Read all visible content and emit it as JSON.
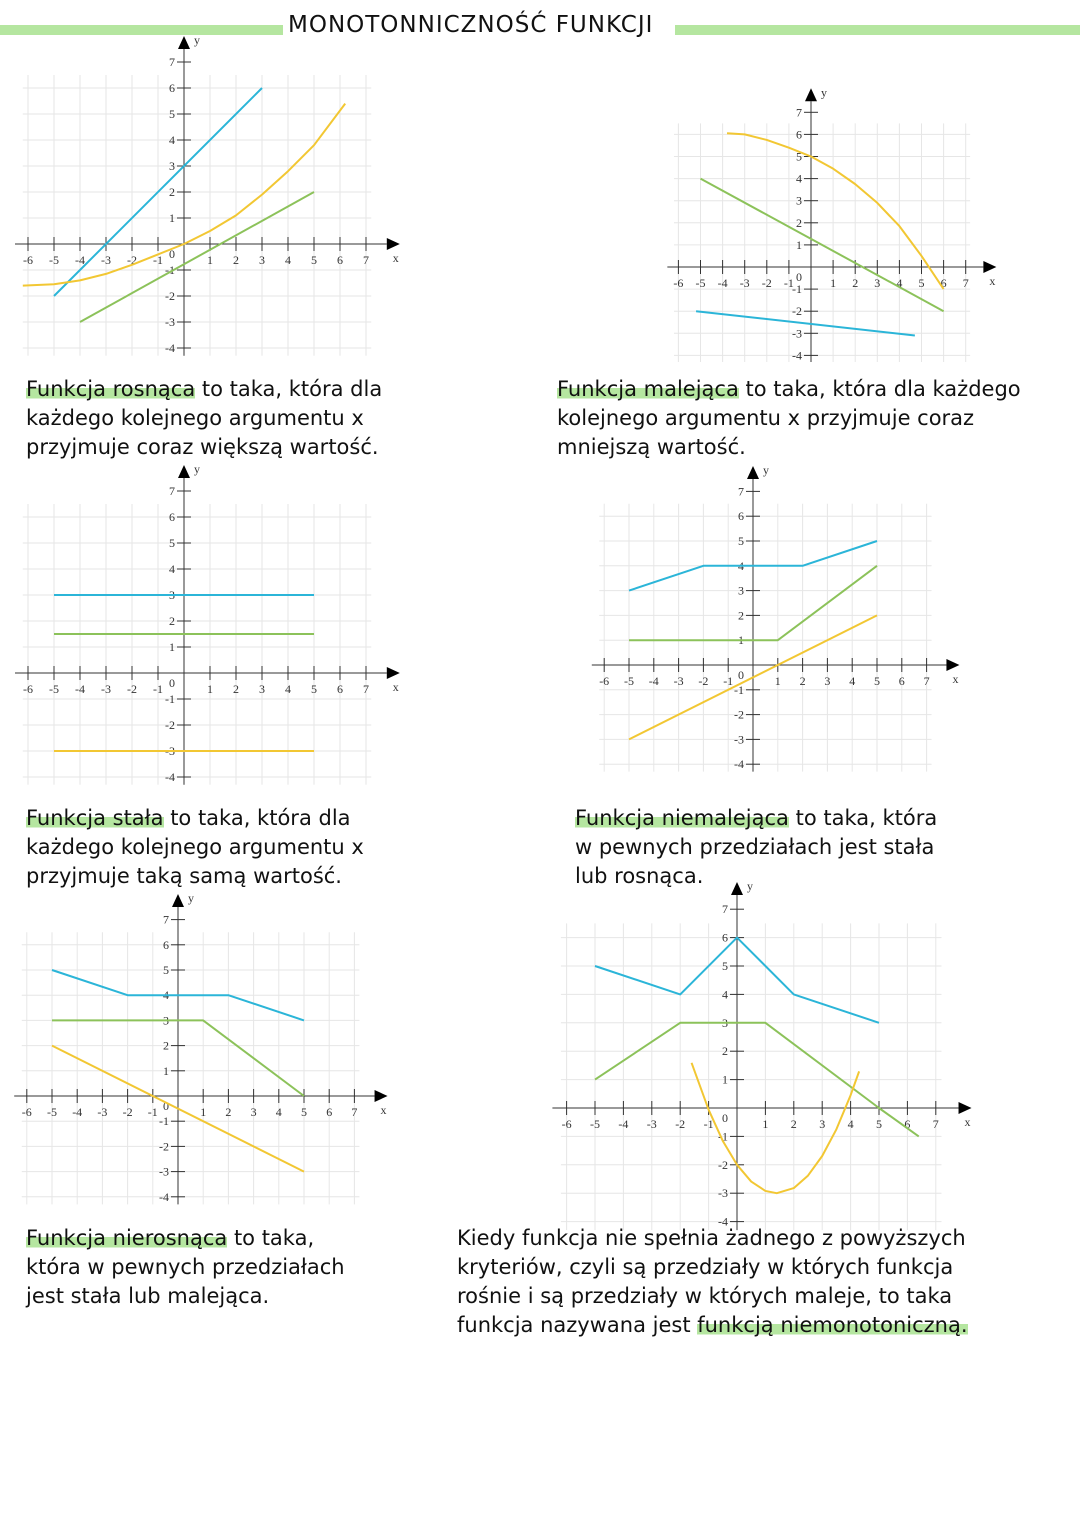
{
  "header": {
    "title": "MONOTONNICZNOŚĆ FUNKCJI",
    "accent_color": "#b5e6a0"
  },
  "blocks": [
    {
      "term": "Funkcja rosnąca",
      "lines": [
        " to taka, która dla",
        "każdego kolejnego argumentu x",
        "przyjmuje coraz większą wartość."
      ]
    },
    {
      "term": "Funkcja malejąca",
      "lines": [
        " to taka, która dla każdego",
        "kolejnego argumentu x przyjmuje coraz",
        "mniejszą wartość."
      ]
    },
    {
      "term": "Funkcja stała",
      "lines": [
        " to taka, która dla",
        "każdego kolejnego argumentu x",
        "przyjmuje taką samą wartość."
      ]
    },
    {
      "term": "Funkcja niemalejąca",
      "lines": [
        " to taka, która",
        "w pewnych przedziałach jest stała",
        "lub rosnąca."
      ]
    },
    {
      "term": "Funkcja nierosnąca",
      "lines": [
        " to taka,",
        "która w pewnych przedziałach",
        "jest stała lub malejąca."
      ]
    },
    {
      "lines": [
        "Kiedy funkcja nie spełnia żadnego z powyższych",
        "kryteriów, czyli są przedziały w których funkcja",
        "rośnie i są przedziały w których maleje, to taka",
        "funkcja nazywana jest "
      ],
      "term_end": "funkcją niemonotoniczną."
    }
  ],
  "colors": {
    "blue": "#2bb5d8",
    "green": "#8cc25a",
    "yellow": "#f2c733"
  },
  "chart_data": [
    {
      "type": "line",
      "xlabel": "x",
      "ylabel": "y",
      "xlim": [
        -6,
        7
      ],
      "ylim": [
        -4,
        7
      ],
      "grid": true,
      "x_ticks": [
        -6,
        -5,
        -4,
        -3,
        -2,
        -1,
        1,
        2,
        3,
        4,
        5,
        6,
        7
      ],
      "y_ticks": [
        -4,
        -3,
        -2,
        -1,
        1,
        2,
        3,
        4,
        5,
        6,
        7
      ],
      "origin_label": "0",
      "series": [
        {
          "color": "blue",
          "points": [
            [
              -5,
              -2
            ],
            [
              3,
              6
            ]
          ]
        },
        {
          "color": "yellow",
          "points": [
            [
              -6.2,
              -1.6
            ],
            [
              -5,
              -1.55
            ],
            [
              -4,
              -1.4
            ],
            [
              -3,
              -1.15
            ],
            [
              -2,
              -0.8
            ],
            [
              -1,
              -0.4
            ],
            [
              0,
              0
            ],
            [
              1,
              0.5
            ],
            [
              2,
              1.1
            ],
            [
              3,
              1.9
            ],
            [
              4,
              2.8
            ],
            [
              5,
              3.8
            ],
            [
              6.2,
              5.4
            ]
          ]
        },
        {
          "color": "green",
          "points": [
            [
              -4,
              -3
            ],
            [
              5,
              2
            ]
          ]
        }
      ]
    },
    {
      "type": "line",
      "xlabel": "x",
      "ylabel": "y",
      "xlim": [
        -6,
        7
      ],
      "ylim": [
        -4,
        7
      ],
      "grid": true,
      "x_ticks": [
        -6,
        -5,
        -4,
        -3,
        -2,
        -1,
        1,
        2,
        3,
        4,
        5,
        6,
        7
      ],
      "y_ticks": [
        -4,
        -3,
        -2,
        -1,
        1,
        2,
        3,
        4,
        5,
        6,
        7
      ],
      "origin_label": "0",
      "series": [
        {
          "color": "yellow",
          "points": [
            [
              -3.8,
              6.05
            ],
            [
              -3,
              6
            ],
            [
              -2,
              5.75
            ],
            [
              -1,
              5.4
            ],
            [
              0,
              5
            ],
            [
              1,
              4.45
            ],
            [
              2,
              3.75
            ],
            [
              3,
              2.9
            ],
            [
              4,
              1.85
            ],
            [
              5,
              0.5
            ],
            [
              6,
              -1
            ]
          ]
        },
        {
          "color": "green",
          "points": [
            [
              -5,
              4
            ],
            [
              6,
              -2
            ]
          ]
        },
        {
          "color": "blue",
          "points": [
            [
              -5.2,
              -2
            ],
            [
              4.7,
              -3.1
            ]
          ]
        }
      ]
    },
    {
      "type": "line",
      "xlabel": "x",
      "ylabel": "y",
      "xlim": [
        -6,
        7
      ],
      "ylim": [
        -4,
        7
      ],
      "grid": true,
      "x_ticks": [
        -6,
        -5,
        -4,
        -3,
        -2,
        -1,
        1,
        2,
        3,
        4,
        5,
        6,
        7
      ],
      "y_ticks": [
        -4,
        -3,
        -2,
        -1,
        1,
        2,
        3,
        4,
        5,
        6,
        7
      ],
      "origin_label": "0",
      "series": [
        {
          "color": "blue",
          "points": [
            [
              -5,
              3
            ],
            [
              5,
              3
            ]
          ]
        },
        {
          "color": "green",
          "points": [
            [
              -5,
              1.5
            ],
            [
              5,
              1.5
            ]
          ]
        },
        {
          "color": "yellow",
          "points": [
            [
              -5,
              -3
            ],
            [
              5,
              -3
            ]
          ]
        }
      ]
    },
    {
      "type": "line",
      "xlabel": "x",
      "ylabel": "y",
      "xlim": [
        -6,
        7
      ],
      "ylim": [
        -4,
        7
      ],
      "grid": true,
      "x_ticks": [
        -6,
        -5,
        -4,
        -3,
        -2,
        -1,
        1,
        2,
        3,
        4,
        5,
        6,
        7
      ],
      "y_ticks": [
        -4,
        -3,
        -2,
        -1,
        1,
        2,
        3,
        4,
        5,
        6,
        7
      ],
      "origin_label": "0",
      "series": [
        {
          "color": "blue",
          "points": [
            [
              -5,
              3
            ],
            [
              -2,
              4
            ],
            [
              2,
              4
            ],
            [
              5,
              5
            ]
          ]
        },
        {
          "color": "green",
          "points": [
            [
              -5,
              1
            ],
            [
              1,
              1
            ],
            [
              5,
              4
            ]
          ]
        },
        {
          "color": "yellow",
          "points": [
            [
              -5,
              -3
            ],
            [
              5,
              2
            ]
          ]
        }
      ]
    },
    {
      "type": "line",
      "xlabel": "x",
      "ylabel": "y",
      "xlim": [
        -6,
        7
      ],
      "ylim": [
        -4,
        7
      ],
      "grid": true,
      "x_ticks": [
        -6,
        -5,
        -4,
        -3,
        -2,
        -1,
        1,
        2,
        3,
        4,
        5,
        6,
        7
      ],
      "y_ticks": [
        -4,
        -3,
        -2,
        -1,
        1,
        2,
        3,
        4,
        5,
        6,
        7
      ],
      "origin_label": "0",
      "series": [
        {
          "color": "blue",
          "points": [
            [
              -5,
              5
            ],
            [
              -2,
              4
            ],
            [
              2,
              4
            ],
            [
              5,
              3
            ]
          ]
        },
        {
          "color": "green",
          "points": [
            [
              -5,
              3
            ],
            [
              1,
              3
            ],
            [
              5,
              0
            ]
          ]
        },
        {
          "color": "yellow",
          "points": [
            [
              -5,
              2
            ],
            [
              5,
              -3
            ]
          ]
        }
      ]
    },
    {
      "type": "line",
      "xlabel": "x",
      "ylabel": "y",
      "xlim": [
        -6,
        7
      ],
      "ylim": [
        -4,
        7
      ],
      "grid": true,
      "x_ticks": [
        -6,
        -5,
        -4,
        -3,
        -2,
        -1,
        1,
        2,
        3,
        4,
        5,
        6,
        7
      ],
      "y_ticks": [
        -4,
        -3,
        -2,
        -1,
        1,
        2,
        3,
        4,
        5,
        6,
        7
      ],
      "origin_label": "0",
      "series": [
        {
          "color": "blue",
          "points": [
            [
              -5,
              5
            ],
            [
              -2,
              4
            ],
            [
              0,
              6
            ],
            [
              2,
              4
            ],
            [
              5,
              3
            ]
          ]
        },
        {
          "color": "green",
          "points": [
            [
              -5,
              1
            ],
            [
              -2,
              3
            ],
            [
              1,
              3
            ],
            [
              5,
              0
            ],
            [
              6.4,
              -1
            ]
          ]
        },
        {
          "color": "yellow",
          "points": [
            [
              -1.6,
              1.59
            ],
            [
              -1,
              -0.06
            ],
            [
              -0.5,
              -1.16
            ],
            [
              0,
              -2
            ],
            [
              0.5,
              -2.59
            ],
            [
              1,
              -2.92
            ],
            [
              1.4,
              -3
            ],
            [
              2,
              -2.82
            ],
            [
              2.5,
              -2.38
            ],
            [
              3,
              -1.69
            ],
            [
              3.5,
              -0.75
            ],
            [
              4,
              0.45
            ],
            [
              4.3,
              1.29
            ]
          ]
        }
      ]
    }
  ]
}
